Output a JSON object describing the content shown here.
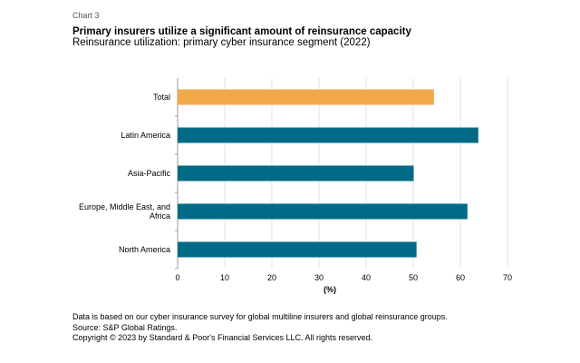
{
  "header": {
    "label": "Chart 3",
    "title": "Primary insurers utilize a significant amount of reinsurance capacity",
    "subtitle": "Reinsurance utilization: primary cyber insurance segment (2022)"
  },
  "footer": {
    "lines": [
      "Data is based on our cyber insurance survey for global multiline insurers and global reinsurance groups.",
      "Source: S&P Global Ratings.",
      "Copyright © 2023 by Standard & Poor's Financial Services LLC. All rights reserved."
    ]
  },
  "chart_data": {
    "type": "bar",
    "orientation": "horizontal",
    "categories": [
      "Total",
      "Latin America",
      "Asia-Pacific",
      "Europe, Middle East, and Africa",
      "North America"
    ],
    "values": [
      54.4,
      63.8,
      50.1,
      61.5,
      50.7
    ],
    "colors": [
      "#F2A94A",
      "#006A87",
      "#006A87",
      "#006A87",
      "#006A87"
    ],
    "xlabel": "(%)",
    "xlim": [
      0,
      70
    ],
    "xticks": [
      0,
      10,
      20,
      30,
      40,
      50,
      60,
      70
    ],
    "grid": "vertical"
  }
}
